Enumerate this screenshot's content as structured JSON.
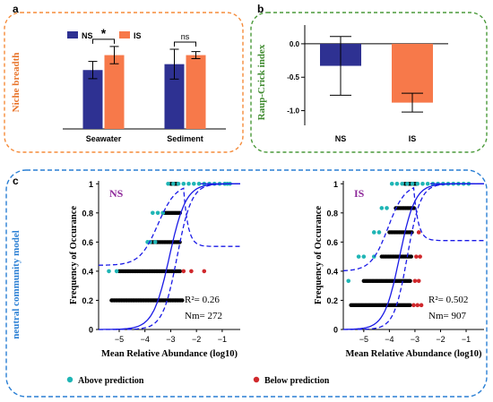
{
  "panel_labels": {
    "a": "a",
    "b": "b",
    "c": "c"
  },
  "colors": {
    "ns": "#2e3192",
    "is": "#f7794a",
    "panel_a_border": "#f58b3a",
    "panel_b_border": "#4a9a3a",
    "panel_c_border": "#2a7fd4",
    "above": "#1fb5b5",
    "below": "#d0282c",
    "fit": "#1a1ae6",
    "neutral": "#000000"
  },
  "chart_data": [
    {
      "id": "a",
      "type": "bar",
      "ylabel": "Niche breadth",
      "categories": [
        "Seawater",
        "Sediment"
      ],
      "series": [
        {
          "name": "NS",
          "values": [
            1.5,
            1.65
          ],
          "errors": [
            0.22,
            0.38
          ]
        },
        {
          "name": "IS",
          "values": [
            1.88,
            1.88
          ],
          "errors": [
            0.22,
            0.09
          ]
        }
      ],
      "ylim": [
        0,
        2.6
      ],
      "annotations": [
        {
          "category": "Seawater",
          "text": "*"
        },
        {
          "category": "Sediment",
          "text": "ns"
        }
      ]
    },
    {
      "id": "b",
      "type": "bar",
      "ylabel": "Raup-Crick index",
      "categories": [
        "NS",
        "IS"
      ],
      "values": [
        -0.33,
        -0.88
      ],
      "errors": [
        0.44,
        0.14
      ],
      "ylim": [
        -1.22,
        0.28
      ],
      "yticks": [
        "0.0",
        "-0.5",
        "-1.0"
      ],
      "ytick_values": [
        0.0,
        -0.5,
        -1.0
      ]
    },
    {
      "id": "c",
      "type": "scatter",
      "ylabel": "neutral community model",
      "legend": [
        {
          "key": "above",
          "label": "Above prediction"
        },
        {
          "key": "below",
          "label": "Below  prediction"
        }
      ],
      "panels": [
        {
          "name": "NS",
          "xlabel": "Mean Relative Abundance (log10)",
          "ylabel": "Frequency of Occurance",
          "xlim": [
            -5.8,
            -0.3
          ],
          "xticks": [
            -5,
            -4,
            -3,
            -2,
            -1
          ],
          "ylim": [
            0,
            1.02
          ],
          "yticks": [
            0,
            0.2,
            0.4,
            0.6,
            0.8,
            1
          ],
          "r2": "R²= 0.26",
          "nm": "Nm= 272",
          "fit": {
            "m": -3.05,
            "s": 0.32
          },
          "lower_bound": {
            "m": -2.75,
            "s": 0.28,
            "cap": 1.0
          },
          "upper_bound": {
            "m": -3.5,
            "s": 0.35,
            "cap": 0.57,
            "floor": 0.44
          },
          "neutral_bands": [
            {
              "y": 0.2,
              "x0": -5.3,
              "x1": -2.55
            },
            {
              "y": 0.4,
              "x0": -5.0,
              "x1": -2.6
            },
            {
              "y": 0.6,
              "x0": -3.8,
              "x1": -2.6
            },
            {
              "y": 0.8,
              "x0": -3.3,
              "x1": -2.6
            },
            {
              "y": 1.0,
              "x0": -3.0,
              "x1": -2.7
            }
          ],
          "above_points": [
            [
              -5.4,
              0.4
            ],
            [
              -5.1,
              0.4
            ],
            [
              -3.9,
              0.6
            ],
            [
              -3.8,
              0.6
            ],
            [
              -3.6,
              0.6
            ],
            [
              -3.7,
              0.8
            ],
            [
              -3.5,
              0.8
            ],
            [
              -3.3,
              0.8
            ],
            [
              -3.1,
              1.0
            ],
            [
              -2.9,
              1.0
            ],
            [
              -2.7,
              1.0
            ],
            [
              -2.5,
              1.0
            ],
            [
              -2.3,
              1.0
            ],
            [
              -2.1,
              1.0
            ],
            [
              -1.9,
              1.0
            ],
            [
              -1.7,
              1.0
            ],
            [
              -1.5,
              1.0
            ],
            [
              -1.3,
              1.0
            ],
            [
              -1.1,
              1.0
            ],
            [
              -0.9,
              1.0
            ],
            [
              -0.8,
              1.0
            ],
            [
              -0.7,
              1.0
            ]
          ],
          "below_points": [
            [
              -2.5,
              0.4
            ],
            [
              -2.2,
              0.4
            ],
            [
              -1.7,
              0.4
            ]
          ]
        },
        {
          "name": "IS",
          "xlabel": "Mean Relative Abundance (log10)",
          "ylabel": "Frequency of Occurance",
          "xlim": [
            -5.8,
            -0.3
          ],
          "xticks": [
            -5,
            -4,
            -3,
            -2,
            -1
          ],
          "ylim": [
            0,
            1.02
          ],
          "yticks": [
            0,
            0.2,
            0.4,
            0.6,
            0.8,
            1
          ],
          "r2": "R²= 0.502",
          "nm": "Nm= 907",
          "fit": {
            "m": -3.6,
            "s": 0.3
          },
          "lower_bound": {
            "m": -3.3,
            "s": 0.26,
            "cap": 1.0
          },
          "upper_bound": {
            "m": -4.05,
            "s": 0.33,
            "cap": 0.61,
            "floor": 0.4
          },
          "neutral_bands": [
            {
              "y": 0.167,
              "x0": -5.5,
              "x1": -3.15
            },
            {
              "y": 0.333,
              "x0": -5.0,
              "x1": -3.15
            },
            {
              "y": 0.5,
              "x0": -4.3,
              "x1": -3.1
            },
            {
              "y": 0.667,
              "x0": -4.0,
              "x1": -3.1
            },
            {
              "y": 0.833,
              "x0": -3.75,
              "x1": -3.0
            },
            {
              "y": 1.0,
              "x0": -3.4,
              "x1": -2.9
            }
          ],
          "above_points": [
            [
              -5.6,
              0.333
            ],
            [
              -5.2,
              0.5
            ],
            [
              -5.0,
              0.5
            ],
            [
              -4.6,
              0.667
            ],
            [
              -4.4,
              0.667
            ],
            [
              -4.3,
              0.833
            ],
            [
              -4.1,
              0.833
            ],
            [
              -4.6,
              0.5
            ],
            [
              -3.9,
              1.0
            ],
            [
              -3.7,
              1.0
            ],
            [
              -3.5,
              1.0
            ],
            [
              -3.3,
              1.0
            ],
            [
              -3.1,
              1.0
            ],
            [
              -2.9,
              1.0
            ],
            [
              -2.7,
              1.0
            ],
            [
              -2.5,
              1.0
            ],
            [
              -2.3,
              1.0
            ],
            [
              -2.1,
              1.0
            ],
            [
              -1.9,
              1.0
            ],
            [
              -1.7,
              1.0
            ],
            [
              -1.5,
              1.0
            ],
            [
              -1.3,
              1.0
            ],
            [
              -1.1,
              1.0
            ],
            [
              -0.9,
              1.0
            ]
          ],
          "below_points": [
            [
              -3.05,
              0.167
            ],
            [
              -2.9,
              0.167
            ],
            [
              -2.75,
              0.167
            ],
            [
              -3.0,
              0.333
            ],
            [
              -2.85,
              0.333
            ],
            [
              -2.95,
              0.5
            ],
            [
              -2.8,
              0.5
            ],
            [
              -2.85,
              0.667
            ]
          ]
        }
      ]
    }
  ]
}
